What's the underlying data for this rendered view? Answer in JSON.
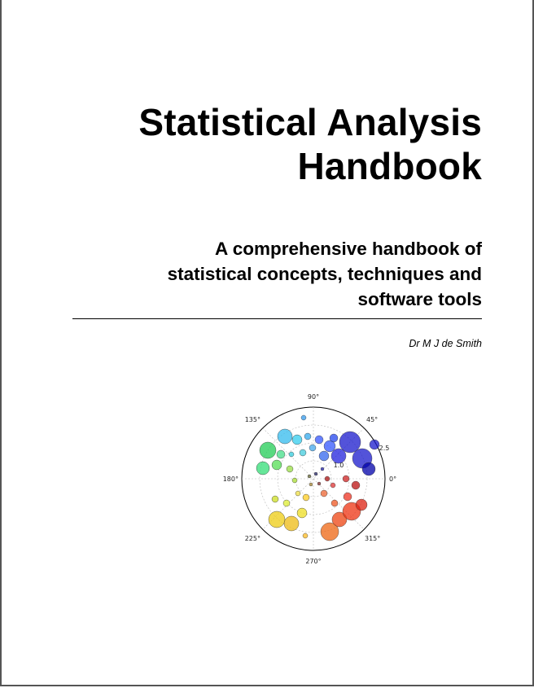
{
  "cover": {
    "title_lines": [
      "Statistical Analysis",
      "Handbook"
    ],
    "subtitle_lines": [
      "A comprehensive handbook of",
      "statistical concepts, techniques and",
      "software tools"
    ],
    "author": "Dr M J de Smith"
  },
  "figure": {
    "angle_labels": [
      "0°",
      "45°",
      "90°",
      "135°",
      "180°",
      "225°",
      "270°",
      "315°"
    ],
    "radial_tick_labels": [
      "1.0",
      "2.5"
    ]
  }
}
